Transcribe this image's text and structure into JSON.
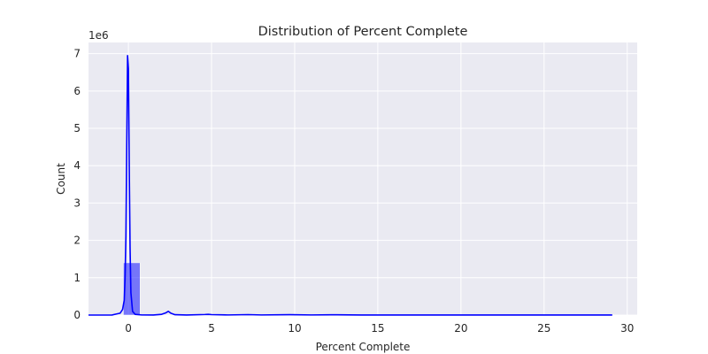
{
  "chart_data": {
    "type": "histogram",
    "title": "Distribution of Percent Complete",
    "xlabel": "Percent Complete",
    "ylabel": "Count",
    "y_offset_label": "1e6",
    "xlim": [
      -2.4,
      30.6
    ],
    "ylim": [
      0,
      7300000
    ],
    "x_ticks": [
      0,
      5,
      10,
      15,
      20,
      25,
      30
    ],
    "x_tick_labels": [
      "0",
      "5",
      "10",
      "15",
      "20",
      "25",
      "30"
    ],
    "y_ticks": [
      0,
      1000000,
      2000000,
      3000000,
      4000000,
      5000000,
      6000000,
      7000000
    ],
    "y_tick_labels": [
      "0",
      "1",
      "2",
      "3",
      "4",
      "5",
      "6",
      "7"
    ],
    "grid": true,
    "colors": {
      "bar": "#0000ff",
      "kde": "#0000ff",
      "background": "#eaeaf2",
      "grid": "#ffffff"
    },
    "bins": [
      {
        "x0": -0.3,
        "x1": 0.7,
        "count": 1400000
      },
      {
        "x0": 2.1,
        "x1": 2.5,
        "count": 4000
      },
      {
        "x0": 4.6,
        "x1": 4.9,
        "count": 3000
      },
      {
        "x0": 7.1,
        "x1": 7.4,
        "count": 2000
      },
      {
        "x0": 9.6,
        "x1": 9.9,
        "count": 1000
      },
      {
        "x0": 12.1,
        "x1": 12.4,
        "count": 1000
      }
    ],
    "series": [
      {
        "type": "kde",
        "x": [
          -2.4,
          -1.0,
          -0.5,
          -0.35,
          -0.25,
          -0.2,
          -0.15,
          -0.1,
          -0.05,
          0.0,
          0.05,
          0.1,
          0.15,
          0.25,
          0.4,
          0.8,
          1.5,
          2.0,
          2.25,
          2.4,
          2.55,
          2.8,
          3.5,
          4.6,
          4.8,
          5.0,
          6.0,
          7.2,
          8.0,
          9.7,
          11.0,
          12.2,
          14.0,
          20.0,
          25.0,
          29.1
        ],
        "y": [
          0,
          0,
          50000,
          150000,
          400000,
          1000000,
          2100000,
          4500000,
          6950000,
          6600000,
          4000000,
          1800000,
          600000,
          100000,
          20000,
          3000,
          2000,
          20000,
          60000,
          100000,
          50000,
          10000,
          2000,
          15000,
          20000,
          12000,
          3000,
          12000,
          3000,
          10000,
          3000,
          8000,
          2000,
          1000,
          500,
          500
        ]
      }
    ]
  }
}
